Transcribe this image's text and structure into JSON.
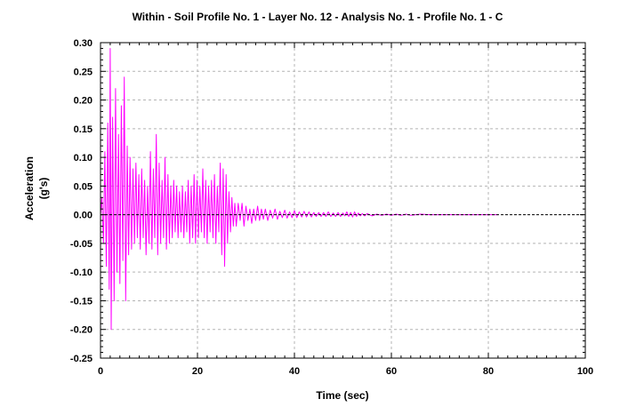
{
  "chart_data": {
    "type": "line",
    "title": "Within - Soil Profile No.  1 - Layer No. 12 - Analysis No. 1 - Profile No. 1 - C",
    "xlabel": "Time (sec)",
    "ylabel_line1": "Acceleration",
    "ylabel_line2": "(g's)",
    "xlim": [
      0,
      100
    ],
    "ylim": [
      -0.25,
      0.3
    ],
    "x_ticks": [
      0,
      20,
      40,
      60,
      80,
      100
    ],
    "x_tick_labels": [
      "0",
      "20",
      "40",
      "60",
      "80",
      "100"
    ],
    "y_ticks": [
      0.3,
      0.25,
      0.2,
      0.15,
      0.1,
      0.05,
      0.0,
      -0.05,
      -0.1,
      -0.15,
      -0.2,
      -0.25
    ],
    "y_tick_labels": [
      "0.30",
      "0.25",
      "0.20",
      "0.15",
      "0.10",
      "0.05",
      "0.00",
      "-0.05",
      "-0.10",
      "-0.15",
      "-0.20",
      "-0.25"
    ],
    "grid": true,
    "zero_line": true,
    "series": [
      {
        "color": "#ff00ff",
        "x": [
          0.0,
          0.3,
          0.6,
          0.9,
          1.2,
          1.5,
          1.8,
          2.0,
          2.2,
          2.5,
          2.8,
          3.1,
          3.4,
          3.7,
          4.0,
          4.3,
          4.6,
          4.9,
          5.2,
          5.5,
          5.8,
          6.1,
          6.4,
          6.7,
          7.0,
          7.3,
          7.6,
          7.9,
          8.2,
          8.5,
          8.8,
          9.1,
          9.4,
          9.7,
          10.0,
          10.3,
          10.6,
          10.9,
          11.2,
          11.5,
          11.8,
          12.1,
          12.4,
          12.7,
          13.0,
          13.3,
          13.6,
          13.9,
          14.2,
          14.5,
          14.8,
          15.1,
          15.4,
          15.7,
          16.0,
          16.3,
          16.6,
          16.9,
          17.2,
          17.5,
          17.8,
          18.1,
          18.4,
          18.7,
          19.0,
          19.3,
          19.6,
          19.9,
          20.2,
          20.5,
          20.8,
          21.1,
          21.4,
          21.7,
          22.0,
          22.3,
          22.6,
          22.9,
          23.2,
          23.5,
          23.8,
          24.1,
          24.4,
          24.7,
          25.0,
          25.3,
          25.6,
          25.9,
          26.2,
          26.5,
          26.8,
          27.1,
          27.4,
          27.7,
          28.0,
          28.4,
          28.8,
          29.2,
          29.6,
          30.0,
          30.4,
          30.8,
          31.2,
          31.6,
          32.0,
          32.4,
          32.8,
          33.2,
          33.6,
          34.0,
          34.5,
          35.0,
          35.5,
          36.0,
          36.5,
          37.0,
          37.5,
          38.0,
          38.5,
          39.0,
          39.5,
          40.0,
          40.5,
          41.0,
          41.5,
          42.0,
          42.5,
          43.0,
          43.5,
          44.0,
          44.5,
          45.0,
          45.5,
          46.0,
          46.5,
          47.0,
          47.5,
          48.0,
          48.5,
          49.0,
          49.5,
          50.0,
          50.4,
          50.8,
          51.2,
          51.6,
          52.0,
          52.4,
          52.8,
          53.2,
          53.6,
          54.0,
          54.5,
          55.0,
          56.0,
          57.0,
          58.0,
          59.0,
          60.0,
          61.0,
          62.0,
          63.0,
          64.0,
          66.0,
          68.0,
          70.0,
          72.0,
          74.0,
          76.0,
          78.0,
          80.0,
          82.0
        ],
        "y": [
          0.0,
          0.03,
          -0.05,
          0.11,
          -0.09,
          0.16,
          -0.13,
          0.29,
          -0.2,
          0.17,
          -0.15,
          0.22,
          -0.1,
          0.14,
          -0.12,
          0.19,
          -0.08,
          0.24,
          -0.15,
          0.12,
          -0.07,
          0.1,
          -0.06,
          0.08,
          -0.05,
          0.09,
          -0.04,
          0.07,
          -0.06,
          0.08,
          -0.04,
          0.06,
          -0.07,
          0.05,
          -0.05,
          0.11,
          -0.06,
          0.08,
          -0.04,
          0.14,
          -0.07,
          0.09,
          -0.05,
          0.06,
          -0.04,
          0.1,
          -0.06,
          0.07,
          -0.05,
          0.05,
          -0.04,
          0.06,
          -0.03,
          0.05,
          -0.04,
          0.04,
          -0.03,
          0.05,
          -0.04,
          0.04,
          -0.03,
          0.06,
          -0.05,
          0.05,
          -0.04,
          0.07,
          -0.05,
          0.06,
          -0.04,
          0.05,
          -0.03,
          0.08,
          -0.04,
          0.06,
          -0.05,
          0.05,
          -0.03,
          0.06,
          -0.04,
          0.07,
          -0.05,
          0.05,
          -0.03,
          0.09,
          -0.07,
          0.08,
          -0.09,
          0.07,
          -0.05,
          0.04,
          -0.03,
          0.03,
          -0.02,
          0.02,
          -0.02,
          0.02,
          -0.01,
          0.02,
          -0.02,
          0.015,
          -0.01,
          0.01,
          -0.015,
          0.01,
          -0.01,
          0.015,
          -0.01,
          0.01,
          -0.008,
          0.01,
          -0.01,
          0.008,
          -0.006,
          0.01,
          -0.008,
          0.006,
          -0.005,
          0.008,
          -0.006,
          0.005,
          -0.005,
          0.007,
          -0.005,
          0.005,
          -0.004,
          0.006,
          -0.004,
          0.005,
          -0.004,
          0.004,
          -0.003,
          0.004,
          -0.003,
          0.004,
          -0.003,
          0.005,
          -0.003,
          0.003,
          -0.003,
          0.004,
          -0.003,
          0.003,
          -0.002,
          0.005,
          -0.003,
          0.004,
          -0.004,
          0.005,
          -0.003,
          0.003,
          -0.002,
          0.002,
          -0.002,
          0.002,
          -0.002,
          0.001,
          -0.001,
          0.001,
          -0.001,
          0.001,
          -0.001,
          0.001,
          -0.001,
          0.001,
          0.0,
          0.0,
          0.0,
          0.0,
          0.0,
          0.0,
          0.0,
          0.0
        ]
      }
    ]
  }
}
